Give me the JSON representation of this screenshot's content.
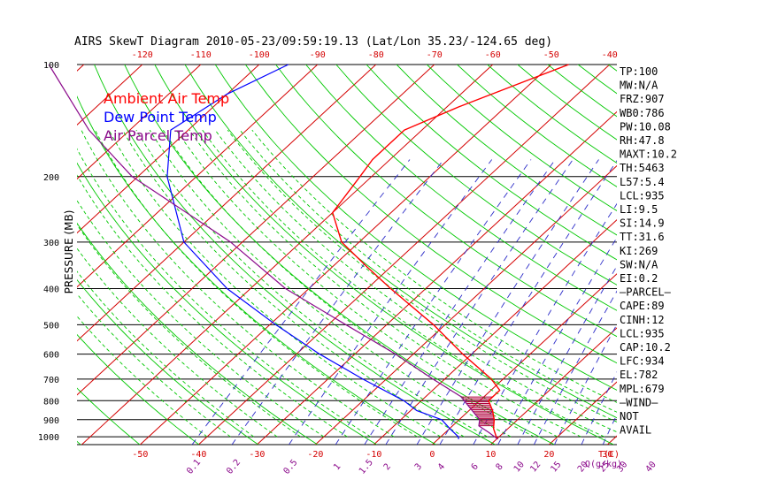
{
  "title": "AIRS SkewT Diagram 2010-05-23/09:59:19.13 (Lat/Lon 35.23/-124.65 deg)",
  "chart_data": {
    "type": "line",
    "title": "AIRS SkewT Diagram 2010-05-23/09:59:19.13 (Lat/Lon 35.23/-124.65 deg)",
    "ylabel": "PRESSURE (MB)",
    "y_scale": "log",
    "y_reversed": true,
    "ylim": [
      1050,
      100
    ],
    "pressure_ticks": [
      100,
      200,
      300,
      400,
      500,
      600,
      700,
      800,
      900,
      1000
    ],
    "top_temp_ticks": [
      "-120",
      "-110",
      "-100",
      "-90",
      "-80",
      "-70",
      "-60",
      "-50",
      "-40"
    ],
    "bottom_temp_ticks": [
      "-50",
      "-40",
      "-30",
      "-20",
      "-10",
      "0",
      "10",
      "20",
      "30"
    ],
    "bottom_temp_unit": "T(C)",
    "mixing_ratio_ticks": [
      "0.1",
      "0.2",
      "0.5",
      "1",
      "1.5",
      "2",
      "3",
      "4",
      "6",
      "8",
      "10",
      "12",
      "15",
      "20",
      "25",
      "30",
      "40"
    ],
    "mixing_ratio_unit": "Q(g/kg)",
    "legend": [
      {
        "name": "Ambient Air Temp",
        "color": "#ff0000"
      },
      {
        "name": "Dew Point Temp",
        "color": "#0000ff"
      },
      {
        "name": "Air Parcel Temp",
        "color": "#8b0a8b"
      }
    ],
    "colors": {
      "isotherm": "#d40000",
      "dry_adiabat": "#00c800",
      "moist_adiabat": "#00c800",
      "mixing_ratio": "#2c2cc8",
      "isobar": "#000000",
      "cape_hatch": "#b0003c"
    },
    "series": [
      {
        "name": "Ambient Air Temp",
        "points": [
          {
            "p": 100,
            "t": -47
          },
          {
            "p": 110,
            "t": -51
          },
          {
            "p": 130,
            "t": -58
          },
          {
            "p": 150,
            "t": -63
          },
          {
            "p": 180,
            "t": -63
          },
          {
            "p": 200,
            "t": -62
          },
          {
            "p": 250,
            "t": -60
          },
          {
            "p": 300,
            "t": -53
          },
          {
            "p": 350,
            "t": -44
          },
          {
            "p": 400,
            "t": -36
          },
          {
            "p": 500,
            "t": -22
          },
          {
            "p": 600,
            "t": -11.5
          },
          {
            "p": 700,
            "t": -2
          },
          {
            "p": 750,
            "t": 1.5
          },
          {
            "p": 800,
            "t": 1.5
          },
          {
            "p": 850,
            "t": 4
          },
          {
            "p": 900,
            "t": 6
          },
          {
            "p": 950,
            "t": 7.5
          },
          {
            "p": 1000,
            "t": 9.5
          },
          {
            "p": 1015,
            "t": 10.2
          }
        ]
      },
      {
        "name": "Dew Point Temp",
        "points": [
          {
            "p": 100,
            "t": -95
          },
          {
            "p": 120,
            "t": -100
          },
          {
            "p": 150,
            "t": -103
          },
          {
            "p": 200,
            "t": -95
          },
          {
            "p": 300,
            "t": -80
          },
          {
            "p": 400,
            "t": -64
          },
          {
            "p": 500,
            "t": -49
          },
          {
            "p": 600,
            "t": -36
          },
          {
            "p": 700,
            "t": -24
          },
          {
            "p": 800,
            "t": -13
          },
          {
            "p": 850,
            "t": -9
          },
          {
            "p": 900,
            "t": -3
          },
          {
            "p": 950,
            "t": 0
          },
          {
            "p": 1000,
            "t": 3
          },
          {
            "p": 1015,
            "t": 3.5
          }
        ]
      },
      {
        "name": "Air Parcel Temp",
        "points": [
          {
            "p": 100,
            "t": -136
          },
          {
            "p": 150,
            "t": -117
          },
          {
            "p": 200,
            "t": -101
          },
          {
            "p": 250,
            "t": -85
          },
          {
            "p": 300,
            "t": -72
          },
          {
            "p": 400,
            "t": -54
          },
          {
            "p": 500,
            "t": -37
          },
          {
            "p": 600,
            "t": -23
          },
          {
            "p": 700,
            "t": -12
          },
          {
            "p": 780,
            "t": -4
          },
          {
            "p": 850,
            "t": 0.5
          },
          {
            "p": 900,
            "t": 3.5
          },
          {
            "p": 935,
            "t": 4.5
          },
          {
            "p": 975,
            "t": 7.5
          },
          {
            "p": 1015,
            "t": 10.2
          }
        ]
      }
    ],
    "cape_shading": {
      "p_top": 782,
      "p_bottom": 934
    },
    "indices": [
      "TP:100",
      "MW:N/A",
      "FRZ:907",
      "WB0:786",
      "PW:10.08",
      "RH:47.8",
      "MAXT:10.2",
      "TH:5463",
      "L57:5.4",
      "LCL:935",
      "LI:9.5",
      "SI:14.9",
      "TT:31.6",
      "KI:269",
      "SW:N/A",
      "EI:0.2",
      "—PARCEL—",
      "CAPE:89",
      "CINH:12",
      "LCL:935",
      "CAP:10.2",
      "LFC:934",
      "EL:782",
      "MPL:679",
      "—WIND—",
      "NOT",
      "AVAIL"
    ]
  }
}
